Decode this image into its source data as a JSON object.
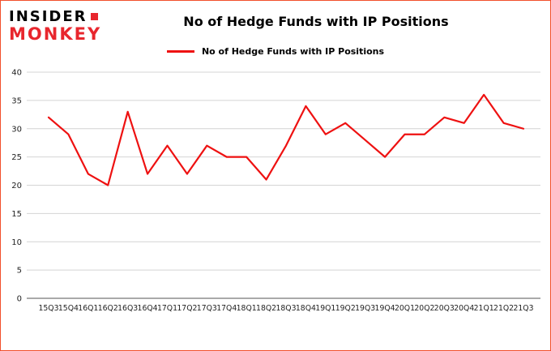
{
  "logo": {
    "line1": "INSIDER",
    "line2": "MONKEY"
  },
  "title": "No of Hedge Funds with IP Positions",
  "legend": {
    "label": "No of Hedge Funds with IP Positions"
  },
  "colors": {
    "border": "#f2502c",
    "line": "#ee1111",
    "grid": "#d4d4d4",
    "axis": "#555555",
    "tick_text": "#222222",
    "logo_red": "#e8262d"
  },
  "chart_data": {
    "type": "line",
    "title": "No of Hedge Funds with IP Positions",
    "series_name": "No of Hedge Funds with IP Positions",
    "categories": [
      "15Q3",
      "15Q4",
      "16Q1",
      "16Q2",
      "16Q3",
      "16Q4",
      "17Q1",
      "17Q2",
      "17Q3",
      "17Q4",
      "18Q1",
      "18Q2",
      "18Q3",
      "18Q4",
      "19Q1",
      "19Q2",
      "19Q3",
      "19Q4",
      "20Q1",
      "20Q2",
      "20Q3",
      "20Q4",
      "21Q1",
      "21Q2",
      "21Q3"
    ],
    "values": [
      32,
      29,
      22,
      20,
      33,
      22,
      27,
      22,
      27,
      25,
      25,
      21,
      27,
      34,
      29,
      31,
      28,
      25,
      29,
      29,
      32,
      31,
      36,
      31,
      30
    ],
    "xlabel": "",
    "ylabel": "",
    "ylim": [
      0,
      40
    ],
    "yticks": [
      0,
      5,
      10,
      15,
      20,
      25,
      30,
      35,
      40
    ],
    "grid": true,
    "legend_position": "top",
    "line_color": "#ee1111"
  }
}
